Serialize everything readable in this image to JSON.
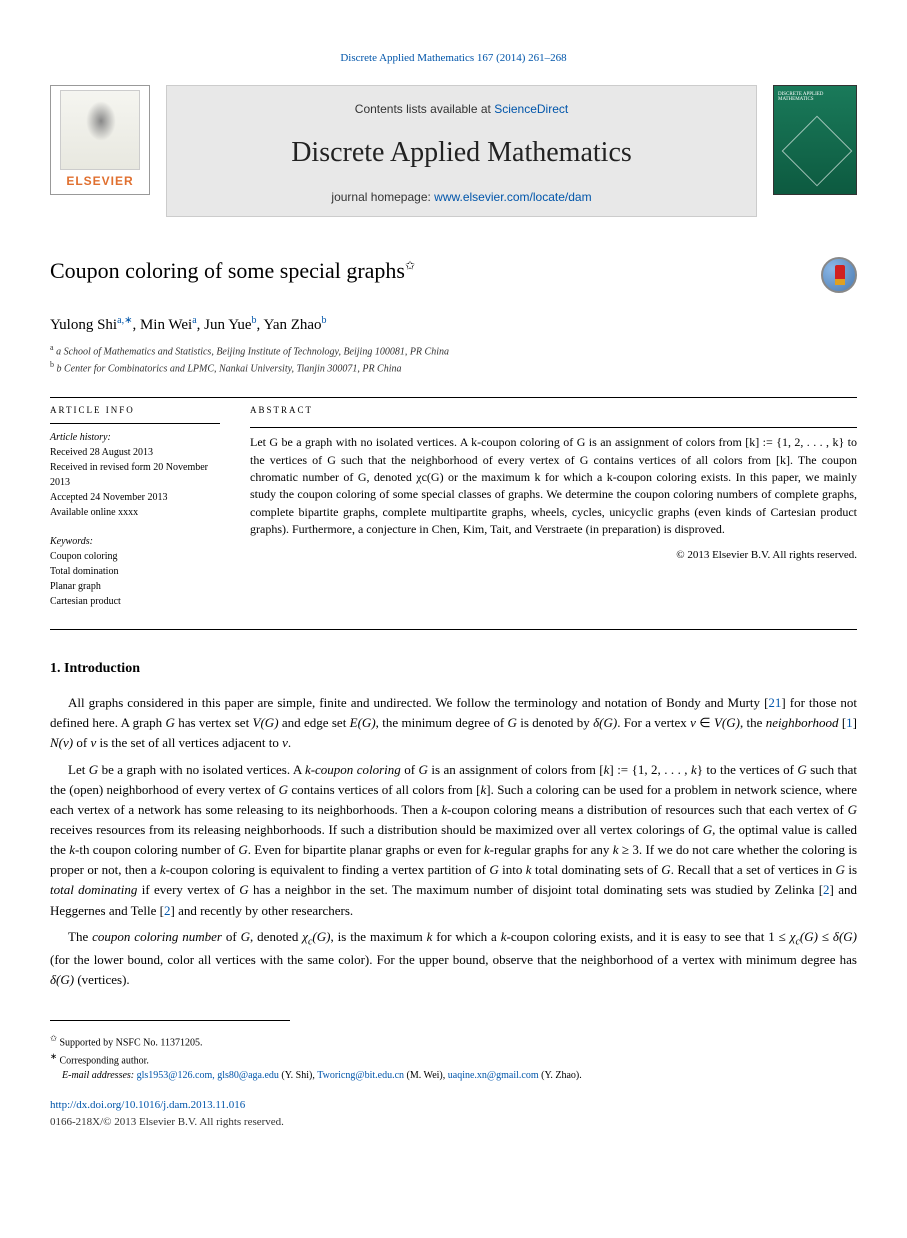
{
  "citation": "Discrete Applied Mathematics 167 (2014) 261–268",
  "header": {
    "elsevier_text": "ELSEVIER",
    "contents_prefix": "Contents lists available at ",
    "sciencedirect": "ScienceDirect",
    "journal_title": "Discrete Applied Mathematics",
    "homepage_prefix": "journal homepage: ",
    "homepage_url": "www.elsevier.com/locate/dam",
    "cover_title": "DISCRETE APPLIED MATHEMATICS"
  },
  "title": {
    "line1": "Coupon coloring of some special graphs",
    "footnote_mark": "✩"
  },
  "authors": {
    "a1_name": "Yulong Shi",
    "a1_aff": "a",
    "a1_corr": "∗",
    "a2_name": "Min Wei",
    "a2_aff": "a",
    "a3_name": "Jun Yue",
    "a3_aff": "b",
    "a4_name": "Yan Zhao",
    "a4_aff": "b"
  },
  "aff": {
    "a": "a School of Mathematics and Statistics, Beijing Institute of Technology, Beijing 100081, PR China",
    "b": "b Center for Combinatorics and LPMC, Nankai University, Tianjin 300071, PR China"
  },
  "info": {
    "head": "ARTICLE INFO",
    "history_label": "Article history:",
    "received": "Received 28 August 2013",
    "revised": "Received in revised form 20 November 2013",
    "accepted": "Accepted 24 November 2013",
    "online": "Available online xxxx",
    "keywords_label": "Keywords:",
    "k1": "Coupon coloring",
    "k2": "Total domination",
    "k3": "Planar graph",
    "k4": "Cartesian product"
  },
  "abstract": {
    "head": "ABSTRACT",
    "text": "Let G be a graph with no isolated vertices. A k-coupon coloring of G is an assignment of colors from [k] := {1, 2, . . . , k} to the vertices of G such that the neighborhood of every vertex of G contains vertices of all colors from [k]. The coupon chromatic number of G, denoted χc(G) or the maximum k for which a k-coupon coloring exists. In this paper, we mainly study the coupon coloring of some special classes of graphs. We determine the coupon coloring numbers of complete graphs, complete bipartite graphs, complete multipartite graphs, wheels, cycles, unicyclic graphs (even kinds of Cartesian product graphs). Furthermore, a conjecture in Chen, Kim, Tait, and Verstraete (in preparation) is disproved.",
    "copyright": "© 2013 Elsevier B.V. All rights reserved."
  },
  "section1": {
    "head": "1. Introduction",
    "p1": "All graphs considered in this paper are simple, finite and undirected. We follow the terminology and notation of Bondy and Murty [21] for those not defined here. A graph G has vertex set V(G) and edge set E(G), the minimum degree of G is denoted by δ(G). For a vertex v ∈ V(G), the neighborhood [N(v)] of v is the set of all vertices adjacent to v.",
    "p2": "Let G be a graph with no isolated vertices. A k-coupon coloring of G is an assignment of colors from [k] := {1, 2, . . . , k} to the vertices of G such that the (open) neighborhood of every vertex of G contains vertices of all colors from [k]. Such a coloring can be used for a problem in network science, where each vertex of a network has some releasing to its neighborhoods. Then a k-coupon coloring means a distribution of resources such that each vertex of G receives resources from its releasing neighborhoods. If such a distribution should be maximized over all vertex colorings of G, the optimal value is called the k-th coupon coloring number of G. Even for bipartite planar graphs or even for k-regular graphs for any k ≥ 3. If we do not care whether the coloring is proper or not, then a k-coupon coloring is equivalent to finding a vertex partition of G into k total dominating sets of G. Recall that a set of vertices in G is total dominating if every vertex of G has a neighbor in the set. The maximum number of disjoint total dominating sets was studied by Zelinka [2] and Heggernes and Telle [2] and recently by other researchers.",
    "p3": "The coupon coloring number of G, denoted χc(G), is the maximum k for which a k-coupon coloring exists, and it is easy to see that 1 ≤ χc(G) ≤ δ(G) (for the lower bound, color all vertices with the same color). For the upper bound, observe that the neighborhood of a vertex with minimum degree has δ(G) (vertices)."
  },
  "footnotes": {
    "funding_mark": "✩",
    "funding": "Supported by NSFC No. 11371205.",
    "corr_mark": "∗",
    "corr_label": "Corresponding author.",
    "email_label": "E-mail addresses:",
    "e1": "gls1953@126.com, gls80@aga.edu",
    "e1_who": "(Y. Shi),",
    "e2": "Tworicng@bit.edu.cn",
    "e2_who": "(M. Wei),",
    "e3": "uaqine.xn@gmail.com",
    "e3_who": "(Y. Zhao)."
  },
  "doi": {
    "url": "http://dx.doi.org/10.1016/j.dam.2013.11.016",
    "rights": "0166-218X/© 2013 Elsevier B.V. All rights reserved."
  }
}
